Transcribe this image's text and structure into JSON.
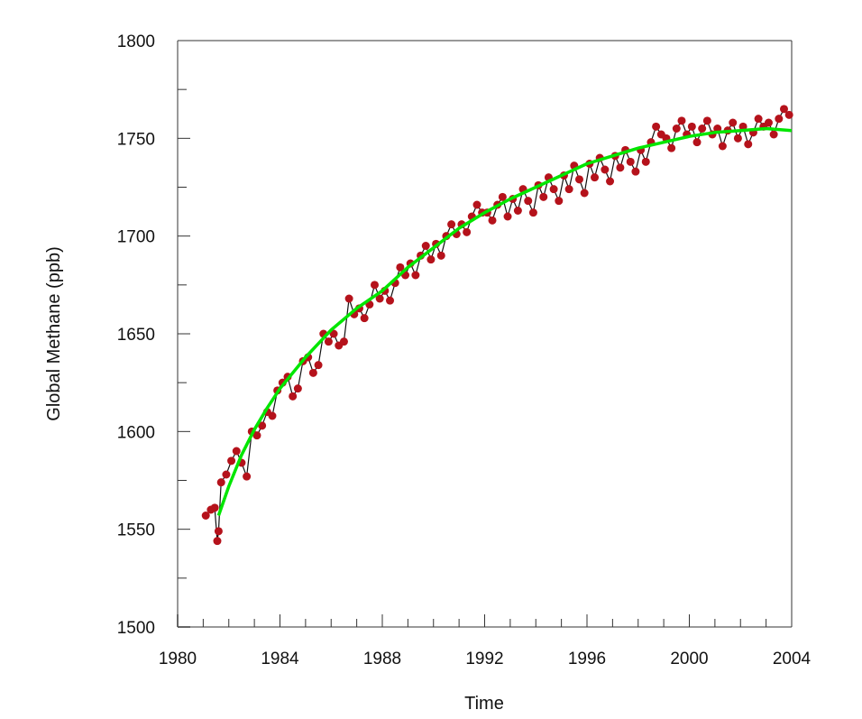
{
  "chart_data": {
    "type": "scatter",
    "title": "",
    "xlabel": "Time",
    "ylabel": "Global Methane (ppb)",
    "xlim": [
      1980,
      2004
    ],
    "ylim": [
      1500,
      1800
    ],
    "x_ticks": [
      1980,
      1984,
      1988,
      1992,
      1996,
      2000,
      2004
    ],
    "y_ticks": [
      1500,
      1550,
      1600,
      1650,
      1700,
      1750,
      1800
    ],
    "x_minor_step": 1,
    "y_minor_step": 25,
    "grid": false,
    "colors": {
      "points": "#b5121b",
      "line": "#111111",
      "fit": "#00e600"
    },
    "series": [
      {
        "kind": "points+line",
        "x": [
          1981.1,
          1981.3,
          1981.45,
          1981.55,
          1981.6,
          1981.7,
          1981.9,
          1982.1,
          1982.3,
          1982.5,
          1982.7,
          1982.9,
          1983.1,
          1983.3,
          1983.5,
          1983.7,
          1983.9,
          1984.1,
          1984.3,
          1984.5,
          1984.7,
          1984.9,
          1985.1,
          1985.3,
          1985.5,
          1985.7,
          1985.9,
          1986.1,
          1986.3,
          1986.5,
          1986.7,
          1986.9,
          1987.1,
          1987.3,
          1987.5,
          1987.7,
          1987.9,
          1988.1,
          1988.3,
          1988.5,
          1988.7,
          1988.9,
          1989.1,
          1989.3,
          1989.5,
          1989.7,
          1989.9,
          1990.1,
          1990.3,
          1990.5,
          1990.7,
          1990.9,
          1991.1,
          1991.3,
          1991.5,
          1991.7,
          1991.9,
          1992.1,
          1992.3,
          1992.5,
          1992.7,
          1992.9,
          1993.1,
          1993.3,
          1993.5,
          1993.7,
          1993.9,
          1994.1,
          1994.3,
          1994.5,
          1994.7,
          1994.9,
          1995.1,
          1995.3,
          1995.5,
          1995.7,
          1995.9,
          1996.1,
          1996.3,
          1996.5,
          1996.7,
          1996.9,
          1997.1,
          1997.3,
          1997.5,
          1997.7,
          1997.9,
          1998.1,
          1998.3,
          1998.5,
          1998.7,
          1998.9,
          1999.1,
          1999.3,
          1999.5,
          1999.7,
          1999.9,
          2000.1,
          2000.3,
          2000.5,
          2000.7,
          2000.9,
          2001.1,
          2001.3,
          2001.5,
          2001.7,
          2001.9,
          2002.1,
          2002.3,
          2002.5,
          2002.7,
          2002.9,
          2003.1,
          2003.3,
          2003.5,
          2003.7,
          2003.9
        ],
        "y": [
          1557,
          1560,
          1561,
          1544,
          1549,
          1574,
          1578,
          1585,
          1590,
          1584,
          1577,
          1600,
          1598,
          1603,
          1610,
          1608,
          1621,
          1625,
          1628,
          1618,
          1622,
          1636,
          1638,
          1630,
          1634,
          1650,
          1646,
          1650,
          1644,
          1646,
          1668,
          1660,
          1663,
          1658,
          1665,
          1675,
          1668,
          1672,
          1667,
          1676,
          1684,
          1680,
          1686,
          1680,
          1690,
          1695,
          1688,
          1696,
          1690,
          1700,
          1706,
          1701,
          1706,
          1702,
          1710,
          1716,
          1712,
          1712,
          1708,
          1716,
          1720,
          1710,
          1719,
          1713,
          1724,
          1718,
          1712,
          1726,
          1720,
          1730,
          1724,
          1718,
          1731,
          1724,
          1736,
          1729,
          1722,
          1737,
          1730,
          1740,
          1734,
          1728,
          1741,
          1735,
          1744,
          1738,
          1733,
          1744,
          1738,
          1748,
          1756,
          1752,
          1750,
          1745,
          1755,
          1759,
          1752,
          1756,
          1748,
          1755,
          1759,
          1752,
          1755,
          1746,
          1754,
          1758,
          1750,
          1756,
          1747,
          1753,
          1760,
          1756,
          1758,
          1752,
          1760,
          1765,
          1762
        ]
      },
      {
        "kind": "fit",
        "x": [
          1981.6,
          1982,
          1982.5,
          1983,
          1983.5,
          1984,
          1985,
          1986,
          1987,
          1988,
          1989,
          1990,
          1991,
          1992,
          1993,
          1994,
          1995,
          1996,
          1997,
          1998,
          1999,
          2000,
          2001,
          2002,
          2003,
          2004
        ],
        "y": [
          1557,
          1572,
          1588,
          1601,
          1612,
          1622,
          1638,
          1652,
          1663,
          1672,
          1684,
          1694,
          1704,
          1712,
          1719,
          1725,
          1731,
          1737,
          1741,
          1745,
          1748,
          1751,
          1753,
          1754,
          1755,
          1754
        ]
      }
    ]
  }
}
